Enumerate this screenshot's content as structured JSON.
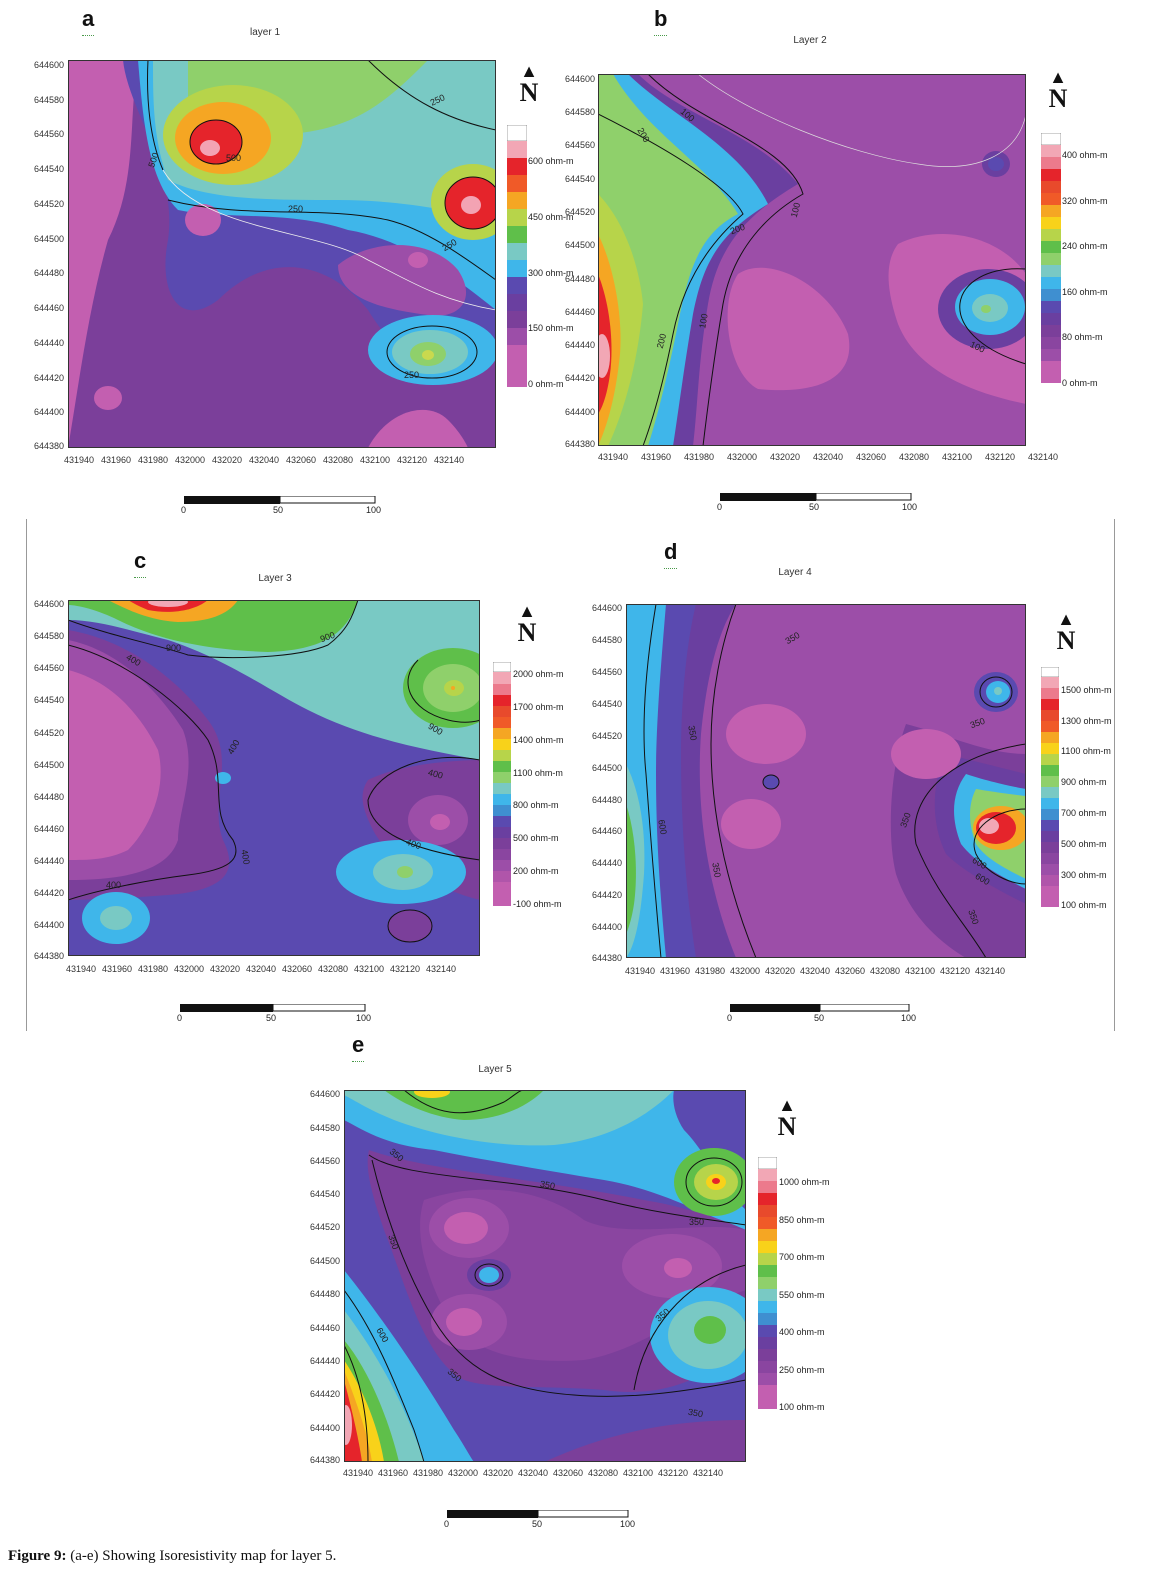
{
  "figure": {
    "caption_bold": "Figure 9:",
    "caption_text": "(a-e) Showing Isoresistivity map for layer 5."
  },
  "north_label": "N",
  "panels": [
    {
      "letter": "a",
      "title": "layer 1",
      "y_ticks": [
        "644600",
        "644580",
        "644560",
        "644540",
        "644520",
        "644500",
        "644480",
        "644460",
        "644440",
        "644420",
        "644400",
        "644380"
      ],
      "x_ticks": [
        "431940",
        "431960",
        "431980",
        "432000",
        "432020",
        "432040",
        "432060",
        "432080",
        "432100",
        "432120",
        "432140"
      ],
      "legend": [
        "600 ohm-m",
        "450 ohm-m",
        "300 ohm-m",
        "150 ohm-m",
        "0 ohm-m"
      ],
      "contour_labels": [
        "250",
        "250",
        "250",
        "250",
        "500",
        "500"
      ],
      "scale": [
        "0",
        "50",
        "100"
      ]
    },
    {
      "letter": "b",
      "title": "Layer 2",
      "y_ticks": [
        "644600",
        "644580",
        "644560",
        "644540",
        "644520",
        "644500",
        "644480",
        "644460",
        "644440",
        "644420",
        "644400",
        "644380"
      ],
      "x_ticks": [
        "431940",
        "431960",
        "431980",
        "432000",
        "432020",
        "432040",
        "432060",
        "432080",
        "432100",
        "432120",
        "432140"
      ],
      "legend": [
        "400 ohm-m",
        "320 ohm-m",
        "240 ohm-m",
        "160 ohm-m",
        "80 ohm-m",
        "0 ohm-m"
      ],
      "contour_labels": [
        "100",
        "200",
        "200",
        "200",
        "100",
        "100",
        "100"
      ],
      "scale": [
        "0",
        "50",
        "100"
      ]
    },
    {
      "letter": "c",
      "title": "Layer 3",
      "y_ticks": [
        "644600",
        "644580",
        "644560",
        "644540",
        "644520",
        "644500",
        "644480",
        "644460",
        "644440",
        "644420",
        "644400",
        "644380"
      ],
      "x_ticks": [
        "431940",
        "431960",
        "431980",
        "432000",
        "432020",
        "432040",
        "432060",
        "432080",
        "432100",
        "432120",
        "432140"
      ],
      "legend": [
        "2000 ohm-m",
        "1700 ohm-m",
        "1400 ohm-m",
        "1100 ohm-m",
        "800 ohm-m",
        "500 ohm-m",
        "200 ohm-m",
        "-100 ohm-m"
      ],
      "contour_labels": [
        "900",
        "900",
        "400",
        "400",
        "900",
        "400",
        "400",
        "400",
        "400"
      ],
      "scale": [
        "0",
        "50",
        "100"
      ]
    },
    {
      "letter": "d",
      "title": "Layer 4",
      "y_ticks": [
        "644600",
        "644580",
        "644560",
        "644540",
        "644520",
        "644500",
        "644480",
        "644460",
        "644440",
        "644420",
        "644400",
        "644380"
      ],
      "x_ticks": [
        "431940",
        "431960",
        "431980",
        "432000",
        "432020",
        "432040",
        "432060",
        "432080",
        "432100",
        "432120",
        "432140"
      ],
      "legend": [
        "1500 ohm-m",
        "1300 ohm-m",
        "1100 ohm-m",
        "900 ohm-m",
        "700 ohm-m",
        "500 ohm-m",
        "300 ohm-m",
        "100 ohm-m"
      ],
      "contour_labels": [
        "350",
        "350",
        "600",
        "350",
        "350",
        "350",
        "600",
        "600",
        "350"
      ],
      "scale": [
        "0",
        "50",
        "100"
      ]
    },
    {
      "letter": "e",
      "title": "Layer 5",
      "y_ticks": [
        "644600",
        "644580",
        "644560",
        "644540",
        "644520",
        "644500",
        "644480",
        "644460",
        "644440",
        "644420",
        "644400",
        "644380"
      ],
      "x_ticks": [
        "431940",
        "431960",
        "431980",
        "432000",
        "432020",
        "432040",
        "432060",
        "432080",
        "432100",
        "432120",
        "432140"
      ],
      "legend": [
        "1000 ohm-m",
        "850 ohm-m",
        "700 ohm-m",
        "550 ohm-m",
        "400 ohm-m",
        "250 ohm-m",
        "100 ohm-m"
      ],
      "contour_labels": [
        "350",
        "350",
        "350",
        "350",
        "350",
        "600",
        "350",
        "350",
        "350"
      ],
      "scale": [
        "0",
        "50",
        "100"
      ]
    }
  ]
}
